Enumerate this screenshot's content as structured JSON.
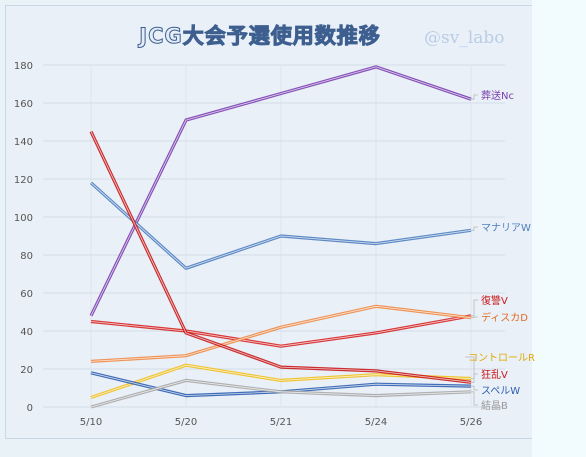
{
  "chart_data": {
    "type": "line",
    "title": "JCG大会予選使用数推移",
    "watermark": "@sv_labo",
    "x": [
      "5/10",
      "5/20",
      "5/21",
      "5/24",
      "5/26"
    ],
    "ylim": [
      0,
      180
    ],
    "yticks": [
      0,
      20,
      40,
      60,
      80,
      100,
      120,
      140,
      160,
      180
    ],
    "grid": true,
    "series": [
      {
        "name": "葬送Nc",
        "color": "#7b3fb0",
        "values": [
          48,
          151,
          165,
          179,
          162
        ]
      },
      {
        "name": "マナリアW",
        "color": "#4f7fc0",
        "values": [
          118,
          73,
          90,
          86,
          93
        ]
      },
      {
        "name": "復讐V",
        "color": "#d62424",
        "values": [
          45,
          40,
          32,
          39,
          48
        ]
      },
      {
        "name": "ディスカD",
        "color": "#ee8a45",
        "values": [
          24,
          27,
          42,
          53,
          47
        ]
      },
      {
        "name": "コントロールR",
        "color": "#f0c020",
        "values": [
          5,
          22,
          14,
          17,
          15
        ]
      },
      {
        "name": "狂乱V",
        "color": "#c81a1a",
        "values": [
          145,
          39,
          21,
          19,
          13
        ]
      },
      {
        "name": "スペルW",
        "color": "#2d5fb0",
        "values": [
          18,
          6,
          8,
          12,
          11
        ]
      },
      {
        "name": "結晶B",
        "color": "#a8a8a8",
        "values": [
          0,
          14,
          8,
          6,
          8
        ]
      }
    ]
  }
}
